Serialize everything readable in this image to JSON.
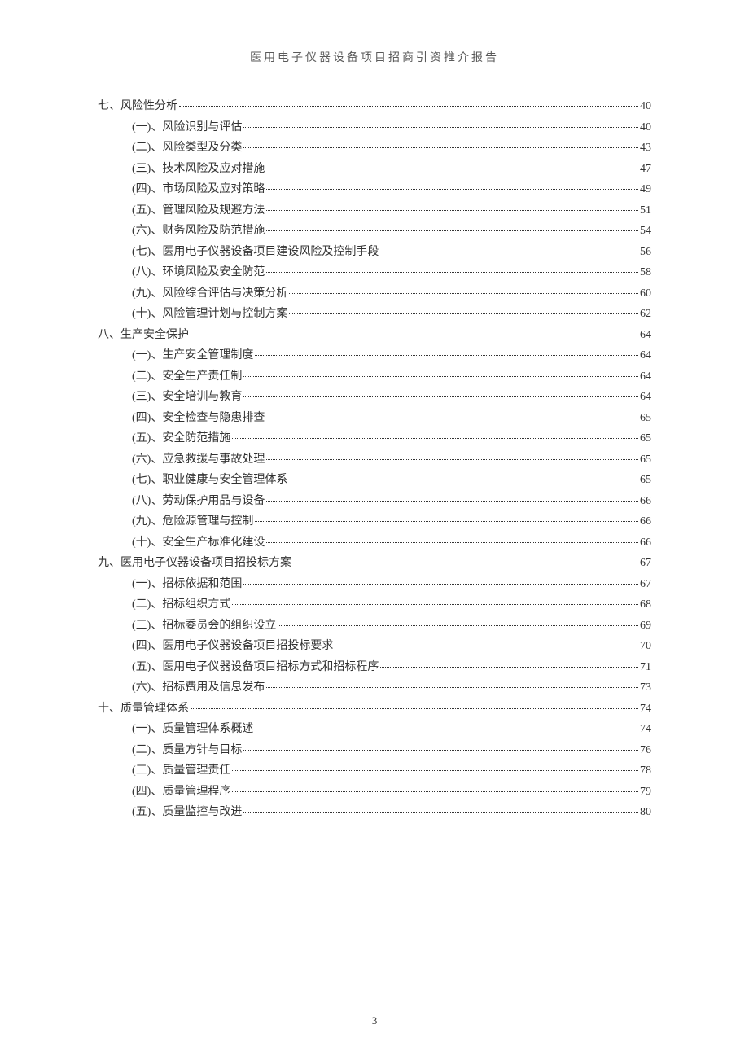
{
  "document": {
    "header_title": "医用电子仪器设备项目招商引资推介报告",
    "page_number": "3",
    "background_color": "#ffffff",
    "text_color": "#333333",
    "header_color": "#5a5a5a",
    "font_size_body": 14,
    "font_size_header": 14,
    "font_size_pagenum": 13
  },
  "toc_entries": [
    {
      "level": 1,
      "label": "七、风险性分析",
      "page": "40"
    },
    {
      "level": 2,
      "label": "(一)、风险识别与评估",
      "page": "40"
    },
    {
      "level": 2,
      "label": "(二)、风险类型及分类",
      "page": "43"
    },
    {
      "level": 2,
      "label": "(三)、技术风险及应对措施",
      "page": "47"
    },
    {
      "level": 2,
      "label": "(四)、市场风险及应对策略",
      "page": "49"
    },
    {
      "level": 2,
      "label": "(五)、管理风险及规避方法",
      "page": "51"
    },
    {
      "level": 2,
      "label": "(六)、财务风险及防范措施",
      "page": "54"
    },
    {
      "level": 2,
      "label": "(七)、医用电子仪器设备项目建设风险及控制手段",
      "page": "56"
    },
    {
      "level": 2,
      "label": "(八)、环境风险及安全防范",
      "page": "58"
    },
    {
      "level": 2,
      "label": "(九)、风险综合评估与决策分析",
      "page": "60"
    },
    {
      "level": 2,
      "label": "(十)、风险管理计划与控制方案",
      "page": "62"
    },
    {
      "level": 1,
      "label": "八、生产安全保护",
      "page": "64"
    },
    {
      "level": 2,
      "label": "(一)、生产安全管理制度",
      "page": "64"
    },
    {
      "level": 2,
      "label": "(二)、安全生产责任制",
      "page": "64"
    },
    {
      "level": 2,
      "label": "(三)、安全培训与教育",
      "page": "64"
    },
    {
      "level": 2,
      "label": "(四)、安全检查与隐患排查",
      "page": "65"
    },
    {
      "level": 2,
      "label": "(五)、安全防范措施",
      "page": "65"
    },
    {
      "level": 2,
      "label": "(六)、应急救援与事故处理",
      "page": "65"
    },
    {
      "level": 2,
      "label": "(七)、职业健康与安全管理体系",
      "page": "65"
    },
    {
      "level": 2,
      "label": "(八)、劳动保护用品与设备",
      "page": "66"
    },
    {
      "level": 2,
      "label": "(九)、危险源管理与控制",
      "page": "66"
    },
    {
      "level": 2,
      "label": "(十)、安全生产标准化建设",
      "page": "66"
    },
    {
      "level": 1,
      "label": "九、医用电子仪器设备项目招投标方案",
      "page": "67"
    },
    {
      "level": 2,
      "label": "(一)、招标依据和范围",
      "page": "67"
    },
    {
      "level": 2,
      "label": "(二)、招标组织方式",
      "page": "68"
    },
    {
      "level": 2,
      "label": "(三)、招标委员会的组织设立",
      "page": "69"
    },
    {
      "level": 2,
      "label": "(四)、医用电子仪器设备项目招投标要求",
      "page": "70"
    },
    {
      "level": 2,
      "label": "(五)、医用电子仪器设备项目招标方式和招标程序",
      "page": "71"
    },
    {
      "level": 2,
      "label": "(六)、招标费用及信息发布",
      "page": "73"
    },
    {
      "level": 1,
      "label": "十、质量管理体系",
      "page": "74"
    },
    {
      "level": 2,
      "label": "(一)、质量管理体系概述",
      "page": "74"
    },
    {
      "level": 2,
      "label": "(二)、质量方针与目标",
      "page": "76"
    },
    {
      "level": 2,
      "label": "(三)、质量管理责任",
      "page": "78"
    },
    {
      "level": 2,
      "label": "(四)、质量管理程序",
      "page": "79"
    },
    {
      "level": 2,
      "label": "(五)、质量监控与改进",
      "page": "80"
    }
  ]
}
